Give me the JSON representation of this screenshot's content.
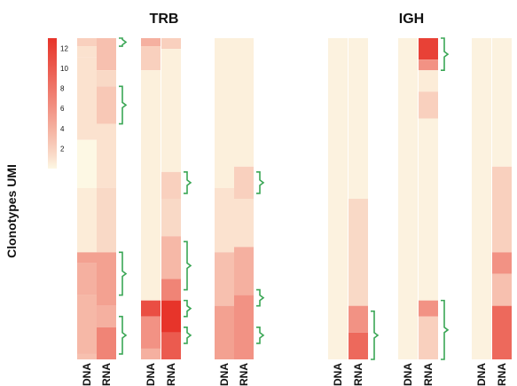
{
  "chart_data": {
    "type": "heatmap",
    "titles": [
      "TRB",
      "IGH"
    ],
    "ylabel": "Clonotypes UMI",
    "colorbar": {
      "ticks": [
        12,
        10,
        8,
        6,
        4,
        2
      ],
      "range": [
        0,
        13
      ],
      "low_color": "#fdf8e4",
      "high_color": "#e7342a"
    },
    "column_labels": [
      "DNA",
      "RNA"
    ],
    "n_rows": 120,
    "groups": [
      {
        "panel": "TRB",
        "columns": [
          {
            "label": "DNA",
            "segments": [
              {
                "from": 0,
                "to": 3,
                "value": 2
              },
              {
                "from": 3,
                "to": 7,
                "value": 1
              },
              {
                "from": 7,
                "to": 38,
                "value": 1
              },
              {
                "from": 38,
                "to": 56,
                "value": 0
              },
              {
                "from": 56,
                "to": 80,
                "value": 0.5
              },
              {
                "from": 80,
                "to": 84,
                "value": 5
              },
              {
                "from": 84,
                "to": 96,
                "value": 4
              },
              {
                "from": 96,
                "to": 118,
                "value": 3.5
              },
              {
                "from": 118,
                "to": 120,
                "value": 3
              }
            ]
          },
          {
            "label": "RNA",
            "segments": [
              {
                "from": 0,
                "to": 12,
                "value": 3
              },
              {
                "from": 12,
                "to": 18,
                "value": 1.5
              },
              {
                "from": 18,
                "to": 32,
                "value": 2.5
              },
              {
                "from": 32,
                "to": 56,
                "value": 1
              },
              {
                "from": 56,
                "to": 80,
                "value": 1.5
              },
              {
                "from": 80,
                "to": 100,
                "value": 5
              },
              {
                "from": 100,
                "to": 108,
                "value": 4
              },
              {
                "from": 108,
                "to": 120,
                "value": 7
              }
            ]
          }
        ],
        "brackets": [
          [
            0,
            3
          ],
          [
            18,
            32
          ],
          [
            80,
            96
          ],
          [
            104,
            118
          ]
        ]
      },
      {
        "panel": "TRB",
        "columns": [
          {
            "label": "DNA",
            "segments": [
              {
                "from": 0,
                "to": 3,
                "value": 4
              },
              {
                "from": 3,
                "to": 12,
                "value": 2
              },
              {
                "from": 12,
                "to": 98,
                "value": 0.3
              },
              {
                "from": 98,
                "to": 104,
                "value": 11
              },
              {
                "from": 104,
                "to": 116,
                "value": 6
              },
              {
                "from": 116,
                "to": 120,
                "value": 4
              }
            ]
          },
          {
            "label": "RNA",
            "segments": [
              {
                "from": 0,
                "to": 4,
                "value": 2
              },
              {
                "from": 4,
                "to": 50,
                "value": 0.3
              },
              {
                "from": 50,
                "to": 60,
                "value": 2
              },
              {
                "from": 60,
                "to": 74,
                "value": 1.5
              },
              {
                "from": 74,
                "to": 90,
                "value": 3.5
              },
              {
                "from": 90,
                "to": 98,
                "value": 7
              },
              {
                "from": 98,
                "to": 110,
                "value": 13
              },
              {
                "from": 110,
                "to": 120,
                "value": 10
              }
            ]
          }
        ],
        "brackets": [
          [
            50,
            58
          ],
          [
            76,
            94
          ],
          [
            98,
            104
          ],
          [
            108,
            114
          ]
        ]
      },
      {
        "panel": "TRB",
        "columns": [
          {
            "label": "DNA",
            "segments": [
              {
                "from": 0,
                "to": 56,
                "value": 0.3
              },
              {
                "from": 56,
                "to": 80,
                "value": 1
              },
              {
                "from": 80,
                "to": 100,
                "value": 3
              },
              {
                "from": 100,
                "to": 120,
                "value": 5
              }
            ]
          },
          {
            "label": "RNA",
            "segments": [
              {
                "from": 0,
                "to": 48,
                "value": 0.3
              },
              {
                "from": 48,
                "to": 60,
                "value": 2
              },
              {
                "from": 60,
                "to": 78,
                "value": 1
              },
              {
                "from": 78,
                "to": 96,
                "value": 4
              },
              {
                "from": 96,
                "to": 120,
                "value": 6
              }
            ]
          }
        ],
        "brackets": [
          [
            50,
            58
          ],
          [
            94,
            100
          ],
          [
            108,
            114
          ]
        ]
      },
      {
        "panel": "IGH",
        "columns": [
          {
            "label": "DNA",
            "segments": [
              {
                "from": 0,
                "to": 120,
                "value": 0.2
              }
            ]
          },
          {
            "label": "RNA",
            "segments": [
              {
                "from": 0,
                "to": 60,
                "value": 0.2
              },
              {
                "from": 60,
                "to": 100,
                "value": 1.5
              },
              {
                "from": 100,
                "to": 110,
                "value": 6
              },
              {
                "from": 110,
                "to": 120,
                "value": 9
              }
            ]
          }
        ],
        "brackets": [
          [
            102,
            120
          ]
        ]
      },
      {
        "panel": "IGH",
        "columns": [
          {
            "label": "DNA",
            "segments": [
              {
                "from": 0,
                "to": 120,
                "value": 0.2
              }
            ]
          },
          {
            "label": "RNA",
            "segments": [
              {
                "from": 0,
                "to": 8,
                "value": 12
              },
              {
                "from": 8,
                "to": 12,
                "value": 6
              },
              {
                "from": 12,
                "to": 20,
                "value": 0.5
              },
              {
                "from": 20,
                "to": 30,
                "value": 2
              },
              {
                "from": 30,
                "to": 98,
                "value": 0.2
              },
              {
                "from": 98,
                "to": 104,
                "value": 6
              },
              {
                "from": 104,
                "to": 120,
                "value": 2
              }
            ]
          }
        ],
        "brackets": [
          [
            0,
            12
          ],
          [
            98,
            120
          ]
        ]
      },
      {
        "panel": "IGH",
        "columns": [
          {
            "label": "DNA",
            "segments": [
              {
                "from": 0,
                "to": 120,
                "value": 0.2
              }
            ]
          },
          {
            "label": "RNA",
            "segments": [
              {
                "from": 0,
                "to": 48,
                "value": 0.2
              },
              {
                "from": 48,
                "to": 80,
                "value": 2
              },
              {
                "from": 80,
                "to": 88,
                "value": 6
              },
              {
                "from": 88,
                "to": 100,
                "value": 3
              },
              {
                "from": 100,
                "to": 120,
                "value": 9
              }
            ]
          }
        ],
        "brackets": []
      }
    ]
  }
}
